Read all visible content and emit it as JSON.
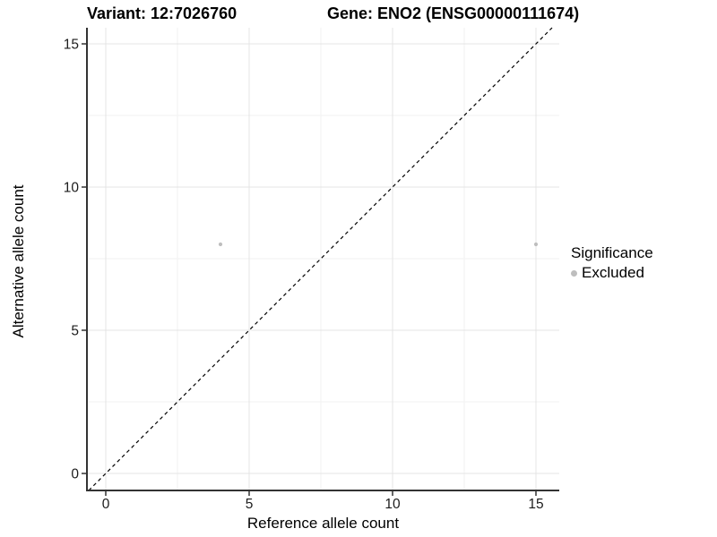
{
  "titles": {
    "variant": "Variant: 12:7026760",
    "gene": "Gene: ENO2 (ENSG00000111674)"
  },
  "axes": {
    "x_label": "Reference allele count",
    "y_label": "Alternative allele count"
  },
  "legend": {
    "title": "Significance",
    "entries": [
      {
        "label": "Excluded",
        "color": "#bebebe"
      }
    ]
  },
  "chart_data": {
    "type": "scatter",
    "title": "Variant: 12:7026760   Gene: ENO2 (ENSG00000111674)",
    "xlabel": "Reference allele count",
    "ylabel": "Alternative allele count",
    "xlim": [
      -0.7,
      15.8
    ],
    "ylim": [
      -0.6,
      15.5
    ],
    "x_ticks": [
      0,
      5,
      10,
      15
    ],
    "y_ticks": [
      0,
      5,
      10,
      15
    ],
    "x_minor_ticks": [
      2.5,
      7.5,
      12.5
    ],
    "y_minor_ticks": [
      2.5,
      7.5,
      12.5
    ],
    "grid": "major+minor",
    "legend_position": "right",
    "series": [
      {
        "name": "Excluded",
        "color": "#bebebe",
        "points": [
          {
            "x": 4,
            "y": 8
          },
          {
            "x": 15,
            "y": 8
          }
        ]
      }
    ],
    "reference_line": {
      "type": "identity",
      "style": "dashed",
      "color": "#000000"
    },
    "colors": {
      "background": "#ffffff",
      "grid_major": "#e4e4e4",
      "grid_minor": "#f2f2f2",
      "axis_line": "#333333",
      "tick_mark": "#333333",
      "tick_label": "#1c1c1c",
      "point": "#bebebe",
      "dashed_line": "#000000"
    }
  }
}
